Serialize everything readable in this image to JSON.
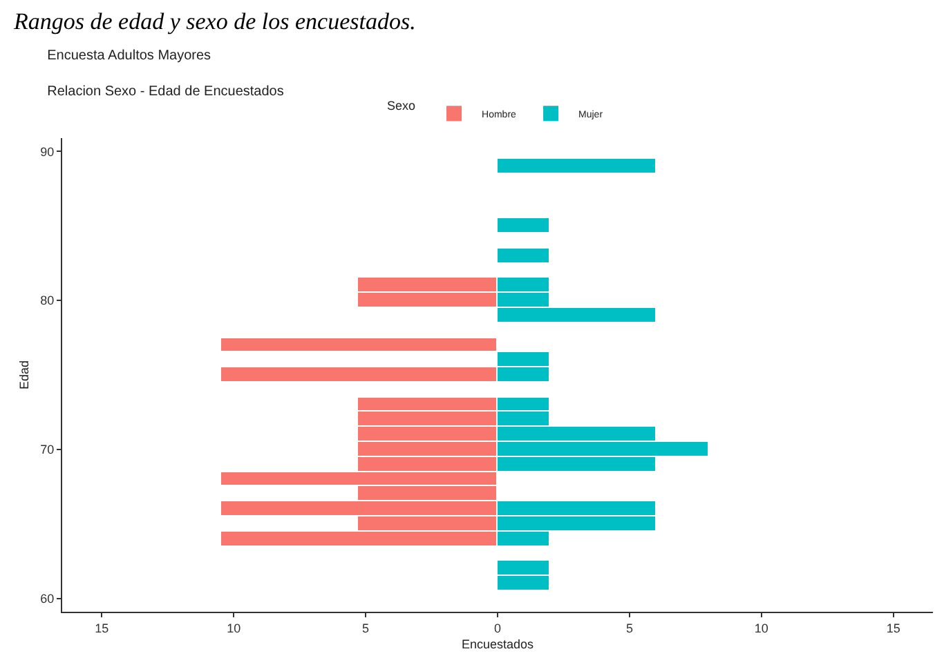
{
  "chart_data": {
    "type": "bar",
    "orientation": "horizontal",
    "title": "Encuesta Adultos Mayores",
    "subtitle": "Relacion Sexo - Edad de Encuestados",
    "annotations": [
      "Rangos de edad y sexo de los encuestados."
    ],
    "xlabel": "Encuestados",
    "ylabel": "Edad",
    "legend_title": "Sexo",
    "legend": "top",
    "x": [
      61,
      62,
      63,
      64,
      65,
      66,
      67,
      68,
      69,
      70,
      71,
      72,
      73,
      74,
      75,
      76,
      77,
      78,
      79,
      80,
      81,
      82,
      83,
      84,
      85,
      86,
      87,
      88,
      89
    ],
    "series": [
      {
        "name": "Hombre",
        "color": "#f8766d",
        "values": [
          null,
          null,
          null,
          -10.5,
          -5.3,
          -10.5,
          -5.3,
          -10.5,
          -5.3,
          -5.3,
          -5.3,
          -5.3,
          -5.3,
          null,
          -10.5,
          null,
          -10.5,
          null,
          null,
          -5.3,
          -5.3,
          null,
          null,
          null,
          null,
          null,
          null,
          null,
          null
        ]
      },
      {
        "name": "Mujer",
        "color": "#00bfc4",
        "values": [
          2,
          2,
          null,
          2,
          6,
          6,
          null,
          null,
          6,
          8,
          6,
          2,
          2,
          null,
          2,
          2,
          null,
          null,
          6,
          2,
          2,
          null,
          2,
          null,
          2,
          null,
          null,
          null,
          6
        ]
      }
    ],
    "xlim": [
      -16.5,
      16.5
    ],
    "xticks": [
      {
        "value": -15,
        "label": "15"
      },
      {
        "value": -10,
        "label": "10"
      },
      {
        "value": -5,
        "label": "5"
      },
      0,
      5,
      10,
      15
    ],
    "ylim": [
      59.1,
      90.9
    ],
    "yticks": [
      60,
      70,
      80,
      90
    ],
    "grid": false
  }
}
